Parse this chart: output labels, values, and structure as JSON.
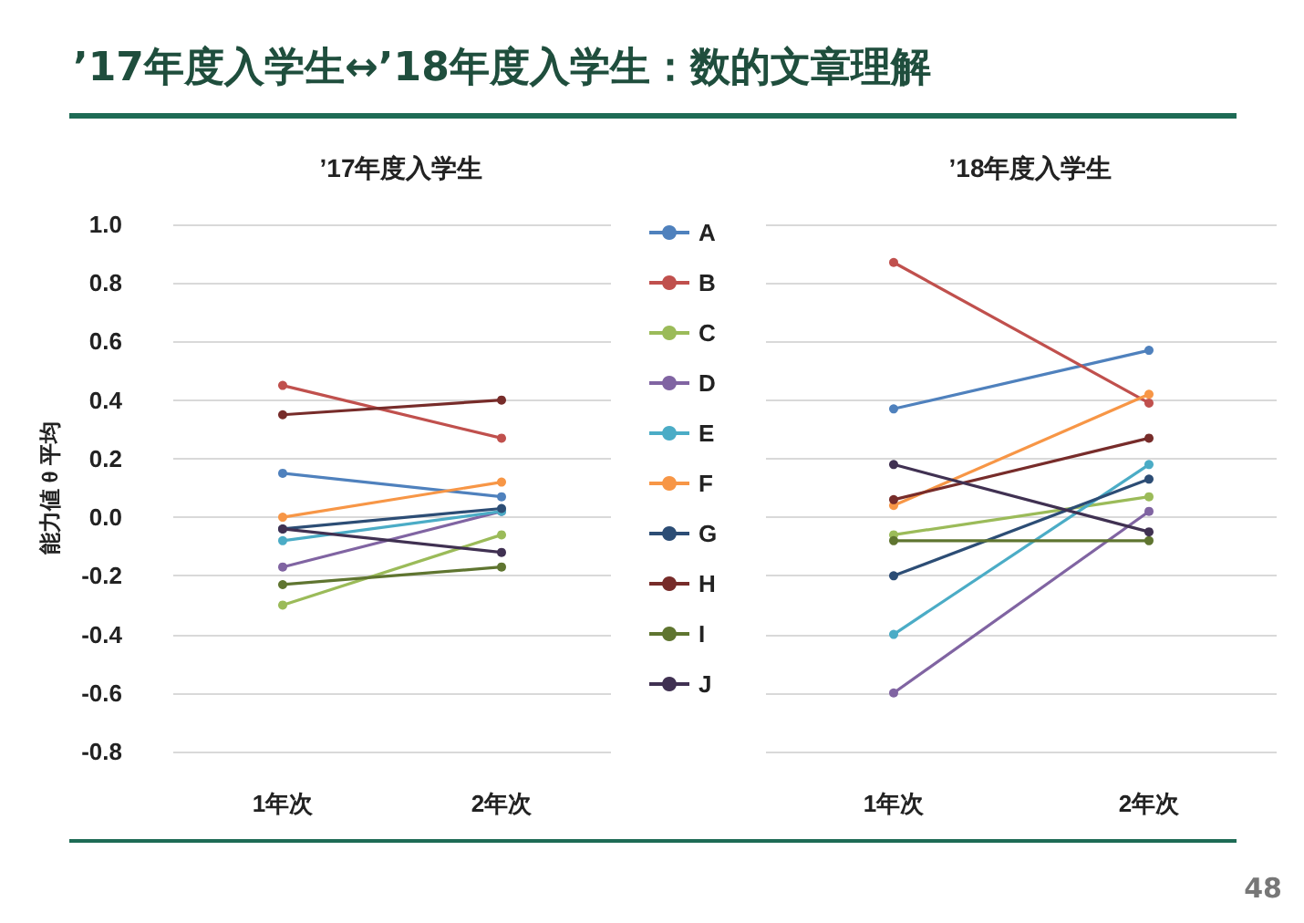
{
  "chart_data": [
    {
      "type": "line",
      "title": "’17年度入学生",
      "ylabel": "能力値 θ 平均",
      "categories": [
        "1年次",
        "2年次"
      ],
      "annotations": [
        "’17年度入学生↔’18年度入学生：数的文章理解"
      ],
      "ylim": [
        -0.8,
        1.0
      ],
      "yticks": [
        {
          "value": -0.8,
          "label": "-0.8"
        },
        {
          "value": -0.6,
          "label": "-0.6"
        },
        {
          "value": -0.4,
          "label": "-0.4"
        },
        {
          "value": -0.2,
          "label": "-0.2"
        },
        {
          "value": 0,
          "label": "0.0"
        },
        {
          "value": 0.2,
          "label": "0.2"
        },
        {
          "value": 0.4,
          "label": "0.4"
        },
        {
          "value": 0.6,
          "label": "0.6"
        },
        {
          "value": 0.8,
          "label": "0.8"
        },
        {
          "value": 1.0,
          "label": "1.0"
        }
      ],
      "grid": "y",
      "legend": false,
      "marker": "circle",
      "series": [
        {
          "color": "#4f81bd",
          "values": [
            0.15,
            0.07
          ]
        },
        {
          "color": "#c0504d",
          "values": [
            0.45,
            0.27
          ]
        },
        {
          "color": "#9bbb59",
          "values": [
            -0.3,
            -0.06
          ]
        },
        {
          "color": "#8064a2",
          "values": [
            -0.17,
            0.02
          ]
        },
        {
          "color": "#4bacc6",
          "values": [
            -0.08,
            0.02
          ]
        },
        {
          "color": "#f79646",
          "values": [
            0.0,
            0.12
          ]
        },
        {
          "color": "#2c4d75",
          "values": [
            -0.04,
            0.03
          ]
        },
        {
          "color": "#772c2a",
          "values": [
            0.35,
            0.4
          ]
        },
        {
          "color": "#5f7530",
          "values": [
            -0.23,
            -0.17
          ]
        },
        {
          "color": "#403152",
          "values": [
            -0.04,
            -0.12
          ]
        }
      ]
    },
    {
      "type": "line",
      "title": "’18年度入学生",
      "categories": [
        "1年次",
        "2年次"
      ],
      "annotations": [
        "48"
      ],
      "ylim": [
        -0.8,
        1.0
      ],
      "yticks": [
        -0.8,
        -0.6,
        -0.4,
        -0.2,
        0,
        0.2,
        0.4,
        0.6,
        0.8,
        1.0
      ],
      "grid": "y",
      "legend": "left",
      "marker": "circle",
      "tick_labels": "x",
      "series": [
        {
          "name": "A",
          "color": "#4f81bd",
          "values": [
            0.37,
            0.57
          ]
        },
        {
          "name": "B",
          "color": "#c0504d",
          "values": [
            0.87,
            0.39
          ]
        },
        {
          "name": "C",
          "color": "#9bbb59",
          "values": [
            -0.06,
            0.07
          ]
        },
        {
          "name": "D",
          "color": "#8064a2",
          "values": [
            -0.6,
            0.02
          ]
        },
        {
          "name": "E",
          "color": "#4bacc6",
          "values": [
            -0.4,
            0.18
          ]
        },
        {
          "name": "F",
          "color": "#f79646",
          "values": [
            0.04,
            0.42
          ]
        },
        {
          "name": "G",
          "color": "#2c4d75",
          "values": [
            -0.2,
            0.13
          ]
        },
        {
          "name": "H",
          "color": "#772c2a",
          "values": [
            0.06,
            0.27
          ]
        },
        {
          "name": "I",
          "color": "#5f7530",
          "values": [
            -0.08,
            -0.08
          ]
        },
        {
          "name": "J",
          "color": "#403152",
          "values": [
            0.18,
            -0.05
          ]
        }
      ]
    }
  ]
}
